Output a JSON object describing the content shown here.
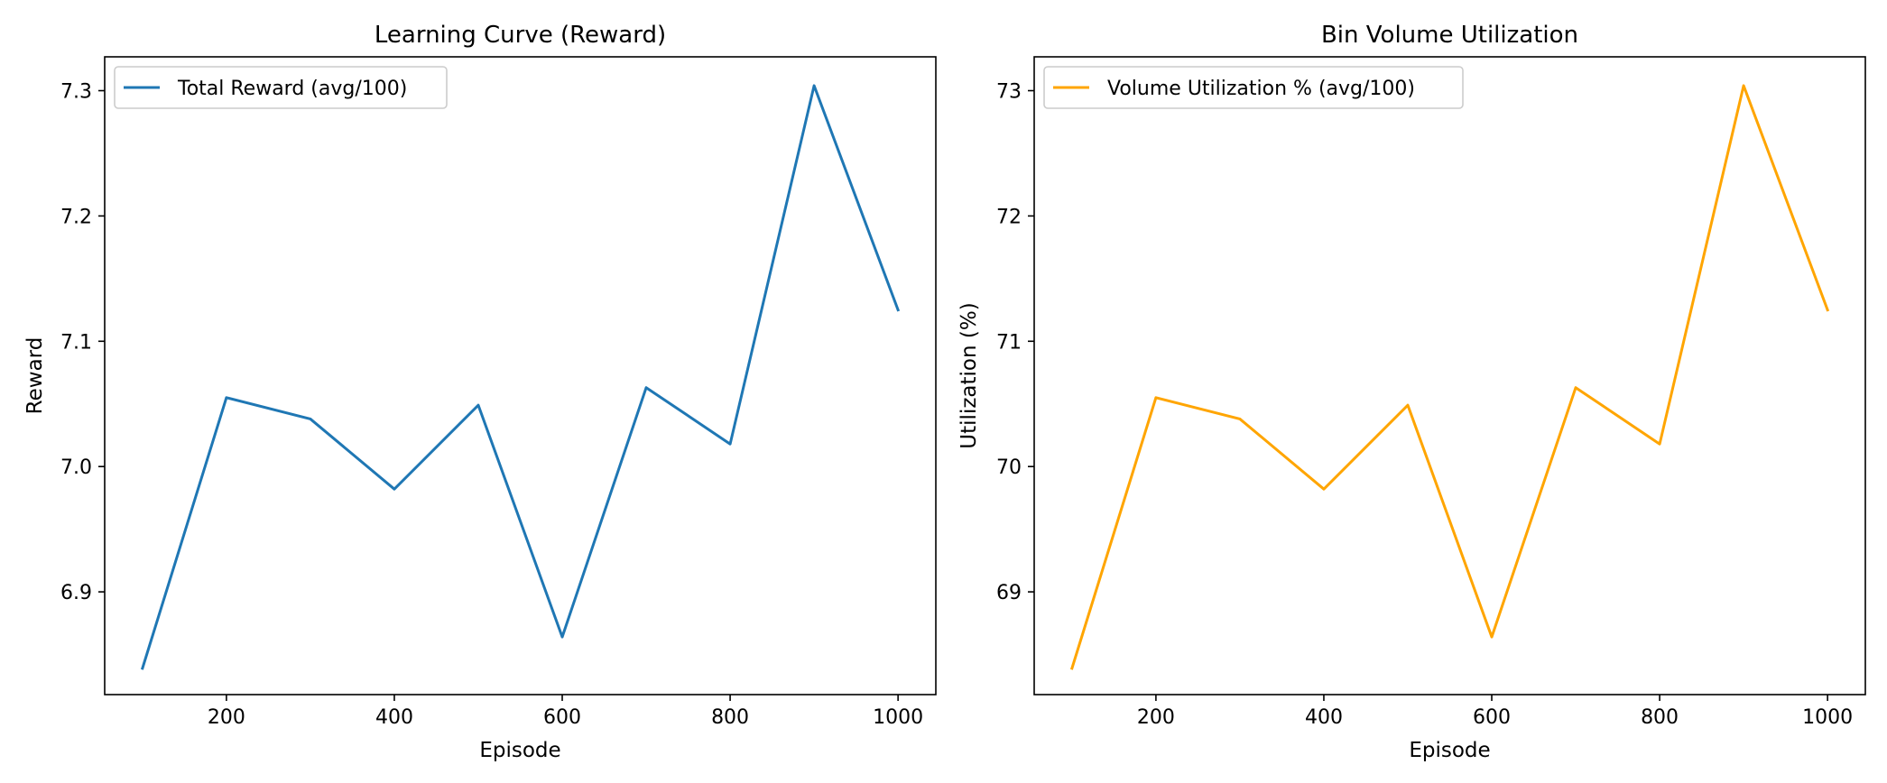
{
  "chart_data": [
    {
      "type": "line",
      "title": "Learning Curve (Reward)",
      "xlabel": "Episode",
      "ylabel": "Reward",
      "x": [
        100,
        200,
        300,
        400,
        500,
        600,
        700,
        800,
        900,
        1000
      ],
      "xticks": [
        200,
        400,
        600,
        800,
        1000
      ],
      "yticks": [
        6.9,
        7.0,
        7.1,
        7.2,
        7.3
      ],
      "xlim": [
        55,
        1045
      ],
      "ylim": [
        6.818,
        7.327
      ],
      "grid": false,
      "legend_position": "upper-left",
      "series": [
        {
          "name": "Total Reward (avg/100)",
          "color": "#1f77b4",
          "values": [
            6.839,
            7.055,
            7.038,
            6.982,
            7.049,
            6.864,
            7.063,
            7.018,
            7.304,
            7.125
          ]
        }
      ]
    },
    {
      "type": "line",
      "title": "Bin Volume Utilization",
      "xlabel": "Episode",
      "ylabel": "Utilization (%)",
      "x": [
        100,
        200,
        300,
        400,
        500,
        600,
        700,
        800,
        900,
        1000
      ],
      "xticks": [
        200,
        400,
        600,
        800,
        1000
      ],
      "yticks": [
        69,
        70,
        71,
        72,
        73
      ],
      "xlim": [
        55,
        1045
      ],
      "ylim": [
        68.18,
        73.27
      ],
      "grid": false,
      "legend_position": "upper-left",
      "series": [
        {
          "name": "Volume Utilization % (avg/100)",
          "color": "#ffa500",
          "values": [
            68.39,
            70.55,
            70.38,
            69.82,
            70.49,
            68.64,
            70.63,
            70.18,
            73.04,
            71.25
          ]
        }
      ]
    }
  ]
}
